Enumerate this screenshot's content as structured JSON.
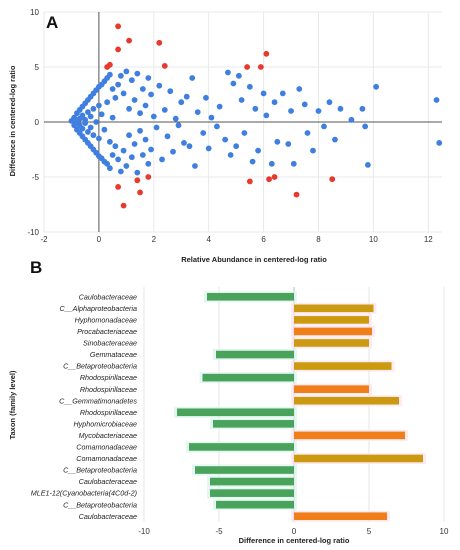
{
  "chart_data": [
    {
      "panel": "A",
      "type": "scatter",
      "xlabel": "Relative Abundance in centered-log ratio",
      "ylabel": "Difference in centered-log ratio",
      "xlim": [
        -2,
        12.5
      ],
      "ylim": [
        -10,
        10
      ],
      "xticks": [
        "-2",
        "0",
        "2",
        "4",
        "6",
        "8",
        "10",
        "12"
      ],
      "yticks": [
        "-10",
        "-5",
        "0",
        "5",
        "10"
      ],
      "colors": {
        "significant": "#e8392f",
        "not_significant": "#3f7fe0"
      },
      "series": [
        {
          "name": "",
          "color": "#e8392f",
          "points": [
            [
              0.7,
              8.7
            ],
            [
              1.1,
              7.4
            ],
            [
              0.7,
              6.6
            ],
            [
              2.2,
              7.2
            ],
            [
              2.4,
              5.1
            ],
            [
              0.3,
              5.0
            ],
            [
              0.4,
              5.2
            ],
            [
              5.4,
              5.0
            ],
            [
              5.9,
              5.0
            ],
            [
              6.1,
              6.2
            ],
            [
              0.7,
              -5.9
            ],
            [
              1.4,
              -5.3
            ],
            [
              1.5,
              -6.4
            ],
            [
              1.8,
              -5.0
            ],
            [
              0.9,
              -7.6
            ],
            [
              5.5,
              -5.4
            ],
            [
              6.2,
              -5.2
            ],
            [
              6.4,
              -5.0
            ],
            [
              7.2,
              -6.6
            ],
            [
              8.5,
              -5.2
            ]
          ]
        },
        {
          "name": "",
          "color": "#3f7fe0",
          "points": [
            [
              -1.0,
              0.1
            ],
            [
              -0.9,
              0.4
            ],
            [
              -0.9,
              -0.3
            ],
            [
              -0.8,
              0.8
            ],
            [
              -0.8,
              -0.7
            ],
            [
              -0.8,
              0.0
            ],
            [
              -0.7,
              1.1
            ],
            [
              -0.7,
              -1.0
            ],
            [
              -0.7,
              0.3
            ],
            [
              -0.7,
              -0.3
            ],
            [
              -0.6,
              1.4
            ],
            [
              -0.6,
              -1.3
            ],
            [
              -0.6,
              0.6
            ],
            [
              -0.6,
              -0.6
            ],
            [
              -0.5,
              1.7
            ],
            [
              -0.5,
              -1.6
            ],
            [
              -0.5,
              0.2
            ],
            [
              -0.5,
              -0.1
            ],
            [
              -0.4,
              2.0
            ],
            [
              -0.4,
              -1.9
            ],
            [
              -0.4,
              0.9
            ],
            [
              -0.4,
              -0.9
            ],
            [
              -0.3,
              2.3
            ],
            [
              -0.3,
              -2.2
            ],
            [
              -0.3,
              0.5
            ],
            [
              -0.3,
              -0.5
            ],
            [
              -0.2,
              2.6
            ],
            [
              -0.2,
              -2.5
            ],
            [
              -0.2,
              1.2
            ],
            [
              -0.2,
              -1.2
            ],
            [
              -0.1,
              2.9
            ],
            [
              -0.1,
              -2.8
            ],
            [
              -0.1,
              0.0
            ],
            [
              0.0,
              3.2
            ],
            [
              0.0,
              -3.1
            ],
            [
              0.0,
              1.5
            ],
            [
              0.0,
              -1.5
            ],
            [
              0.1,
              3.4
            ],
            [
              0.1,
              -3.3
            ],
            [
              0.1,
              0.7
            ],
            [
              0.2,
              3.7
            ],
            [
              0.2,
              -3.6
            ],
            [
              0.2,
              -0.7
            ],
            [
              0.3,
              4.0
            ],
            [
              0.3,
              -3.8
            ],
            [
              0.3,
              1.8
            ],
            [
              0.4,
              4.3
            ],
            [
              0.4,
              -4.2
            ],
            [
              0.4,
              -1.8
            ],
            [
              0.5,
              3.0
            ],
            [
              0.5,
              -3.0
            ],
            [
              0.5,
              0.4
            ],
            [
              0.6,
              2.2
            ],
            [
              0.6,
              -2.2
            ],
            [
              0.7,
              3.4
            ],
            [
              0.7,
              -3.4
            ],
            [
              0.8,
              4.2
            ],
            [
              0.8,
              -4.5
            ],
            [
              0.9,
              2.6
            ],
            [
              0.9,
              -2.6
            ],
            [
              1.0,
              4.6
            ],
            [
              1.0,
              -4.0
            ],
            [
              1.1,
              1.2
            ],
            [
              1.1,
              -1.2
            ],
            [
              1.2,
              3.8
            ],
            [
              1.2,
              -3.2
            ],
            [
              1.3,
              2.0
            ],
            [
              1.3,
              -2.0
            ],
            [
              1.4,
              4.4
            ],
            [
              1.4,
              -4.6
            ],
            [
              1.5,
              0.8
            ],
            [
              1.5,
              -0.8
            ],
            [
              1.6,
              3.0
            ],
            [
              1.6,
              -3.0
            ],
            [
              1.7,
              1.5
            ],
            [
              1.7,
              -1.6
            ],
            [
              1.8,
              4.0
            ],
            [
              1.8,
              -3.8
            ],
            [
              1.9,
              2.5
            ],
            [
              1.9,
              -2.5
            ],
            [
              2.0,
              0.5
            ],
            [
              2.1,
              -0.5
            ],
            [
              2.2,
              3.3
            ],
            [
              2.3,
              -3.4
            ],
            [
              2.4,
              1.1
            ],
            [
              2.5,
              -1.3
            ],
            [
              2.6,
              2.8
            ],
            [
              2.7,
              -2.7
            ],
            [
              2.8,
              0.3
            ],
            [
              2.9,
              -0.3
            ],
            [
              3.0,
              1.8
            ],
            [
              3.1,
              -1.9
            ],
            [
              3.2,
              2.3
            ],
            [
              3.3,
              -2.2
            ],
            [
              3.4,
              4.0
            ],
            [
              3.5,
              -4.0
            ],
            [
              3.6,
              0.9
            ],
            [
              3.8,
              -1.0
            ],
            [
              3.9,
              2.2
            ],
            [
              4.0,
              -2.4
            ],
            [
              4.1,
              0.4
            ],
            [
              4.3,
              -0.4
            ],
            [
              4.4,
              1.4
            ],
            [
              4.6,
              -1.6
            ],
            [
              4.7,
              4.5
            ],
            [
              4.8,
              -3.0
            ],
            [
              4.9,
              3.5
            ],
            [
              5.0,
              -2.2
            ],
            [
              5.1,
              4.2
            ],
            [
              5.2,
              2.0
            ],
            [
              5.3,
              -1.0
            ],
            [
              5.5,
              3.2
            ],
            [
              5.6,
              -3.6
            ],
            [
              5.7,
              1.2
            ],
            [
              5.8,
              -2.6
            ],
            [
              6.0,
              2.6
            ],
            [
              6.1,
              0.6
            ],
            [
              6.3,
              -3.8
            ],
            [
              6.4,
              1.8
            ],
            [
              6.5,
              -1.8
            ],
            [
              6.7,
              2.6
            ],
            [
              6.9,
              -2.0
            ],
            [
              7.0,
              1.0
            ],
            [
              7.1,
              -3.8
            ],
            [
              7.3,
              3.0
            ],
            [
              7.5,
              1.6
            ],
            [
              7.6,
              -1.0
            ],
            [
              7.8,
              -2.6
            ],
            [
              8.0,
              1.0
            ],
            [
              8.2,
              -0.4
            ],
            [
              8.4,
              1.8
            ],
            [
              8.6,
              -1.6
            ],
            [
              8.8,
              1.2
            ],
            [
              9.2,
              0.2
            ],
            [
              9.6,
              1.2
            ],
            [
              9.7,
              -0.4
            ],
            [
              9.8,
              -3.9
            ],
            [
              10.1,
              3.2
            ],
            [
              12.3,
              2.0
            ],
            [
              12.4,
              -1.9
            ]
          ]
        }
      ]
    },
    {
      "panel": "B",
      "type": "bar",
      "orientation": "horizontal",
      "xlabel": "Difference in centered-log ratio",
      "ylabel": "Taxon (family level)",
      "xlim": [
        -10,
        10
      ],
      "xticks": [
        "-10",
        "-5",
        "0",
        "5",
        "10"
      ],
      "colors": {
        "negative": "#4aa35a",
        "positive_a": "#cc9a10",
        "positive_b": "#f07f1a"
      },
      "categories": [
        "Caulobacteraceae",
        "C__Alphaproteobacteria",
        "Hyphomonadaceae",
        "Procabacteriaceae",
        "Sinobacteraceae",
        "Gemmataceae",
        "C__Betaproteobacteria",
        "Rhodospirillaceae",
        "Rhodospirillaceae",
        "C__Gemmatimonadetes",
        "Rhodospirillaceae",
        "Hyphomicrobiaceae",
        "Mycobacteriaceae",
        "Comamonadaceae",
        "Comamonadaceae",
        "C__Betaproteobacteria",
        "Caulobacteraceae",
        "MLE1-12(Cyanobacteria(4C0d-2)",
        "C__Betaproteobacteria",
        "Caulobacteraceae"
      ],
      "values": [
        -5.8,
        5.3,
        5.0,
        5.2,
        5.0,
        -5.2,
        6.5,
        -6.1,
        5.0,
        7.0,
        -7.8,
        -5.4,
        7.4,
        -7.0,
        8.6,
        -6.6,
        -5.6,
        -5.6,
        -5.2,
        6.2
      ],
      "bar_colors": [
        "#4aa35a",
        "#cc9a10",
        "#cc9a10",
        "#f07f1a",
        "#cc9a10",
        "#4aa35a",
        "#cc9a10",
        "#4aa35a",
        "#f07f1a",
        "#cc9a10",
        "#4aa35a",
        "#4aa35a",
        "#f07f1a",
        "#4aa35a",
        "#cc9a10",
        "#4aa35a",
        "#4aa35a",
        "#4aa35a",
        "#4aa35a",
        "#f07f1a"
      ]
    }
  ]
}
